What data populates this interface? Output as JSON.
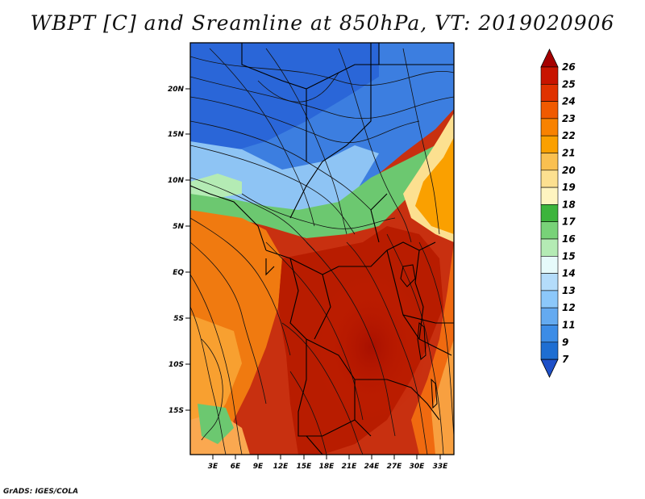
{
  "title": "WBPT [C] and Sreamline at 850hPa, VT: 2019020906",
  "credit": "GrADS: IGES/COLA",
  "map": {
    "lat_labels": [
      "20N",
      "15N",
      "10N",
      "5N",
      "EQ",
      "5S",
      "10S",
      "15S"
    ],
    "lon_labels": [
      "3E",
      "6E",
      "9E",
      "12E",
      "15E",
      "18E",
      "21E",
      "24E",
      "27E",
      "30E",
      "33E"
    ]
  },
  "colorbar": {
    "levels": [
      "26",
      "25",
      "24",
      "23",
      "22",
      "21",
      "20",
      "19",
      "18",
      "17",
      "16",
      "15",
      "14",
      "13",
      "12",
      "11",
      "9",
      "7"
    ],
    "colors": [
      "#a50000",
      "#c81400",
      "#e03200",
      "#f05a00",
      "#f88200",
      "#faa000",
      "#fac050",
      "#fce090",
      "#fef4c0",
      "#3cb43c",
      "#78d278",
      "#b4ebb4",
      "#e6fafa",
      "#b4dcfa",
      "#8cc8fa",
      "#64aaf0",
      "#3c8ce6",
      "#1e6ed2",
      "#1e50c8"
    ]
  }
}
